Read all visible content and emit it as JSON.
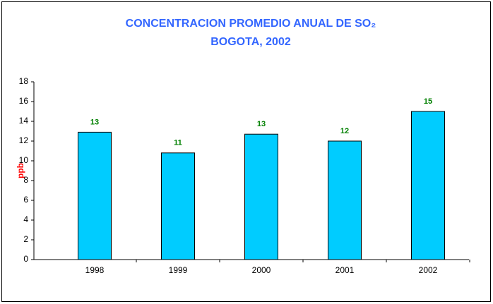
{
  "chart_data": {
    "type": "bar",
    "title": "CONCENTRACION PROMEDIO ANUAL DE SO₂",
    "subtitle": "BOGOTA, 2002",
    "y_label": "ppb",
    "categories": [
      "1998",
      "1999",
      "2000",
      "2001",
      "2002"
    ],
    "values": [
      12.9,
      10.8,
      12.7,
      12.0,
      15.0
    ],
    "value_labels": [
      "13",
      "11",
      "13",
      "12",
      "15"
    ],
    "color": "#00ccff",
    "ylim": [
      0,
      18
    ],
    "yticks": [
      0,
      2,
      4,
      6,
      8,
      10,
      12,
      14,
      16,
      18
    ]
  }
}
